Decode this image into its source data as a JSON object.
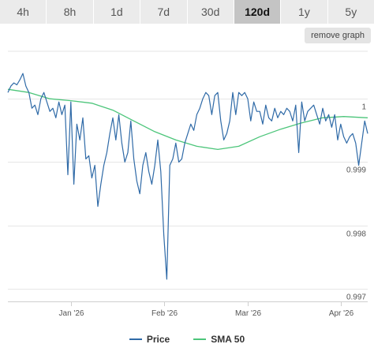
{
  "timeframes": {
    "tabs": [
      "4h",
      "8h",
      "1d",
      "7d",
      "30d",
      "120d",
      "1y",
      "5y"
    ],
    "active": "120d"
  },
  "remove_graph_label": "remove graph",
  "colors": {
    "price": "#2f6aa7",
    "sma": "#4cc57a",
    "grid": "#e6e6e6"
  },
  "chart_data": {
    "type": "line",
    "title": "",
    "xlabel": "",
    "ylabel": "",
    "ylim": [
      0.9968,
      1.00075
    ],
    "yticks": [
      1,
      0.999,
      0.998,
      0.997
    ],
    "ytick_labels": [
      "1",
      "0.999",
      "0.998",
      "0.997"
    ],
    "xlim": [
      "2025-12-11",
      "2026-04-10"
    ],
    "xticks": [
      "2026-01-01",
      "2026-02-01",
      "2026-03-01",
      "2026-04-01"
    ],
    "xtick_labels": [
      "Jan '26",
      "Feb '26",
      "Mar '26",
      "Apr '26"
    ],
    "grid": "horizontal",
    "legend_position": "bottom",
    "series": [
      {
        "name": "Price",
        "x": [
          "2025-12-11",
          "2025-12-12",
          "2025-12-13",
          "2025-12-14",
          "2025-12-15",
          "2025-12-16",
          "2025-12-17",
          "2025-12-18",
          "2025-12-19",
          "2025-12-20",
          "2025-12-21",
          "2025-12-22",
          "2025-12-23",
          "2025-12-24",
          "2025-12-25",
          "2025-12-26",
          "2025-12-27",
          "2025-12-28",
          "2025-12-29",
          "2025-12-30",
          "2025-12-31",
          "2026-01-01",
          "2026-01-02",
          "2026-01-03",
          "2026-01-04",
          "2026-01-05",
          "2026-01-06",
          "2026-01-07",
          "2026-01-08",
          "2026-01-09",
          "2026-01-10",
          "2026-01-11",
          "2026-01-12",
          "2026-01-13",
          "2026-01-14",
          "2026-01-15",
          "2026-01-16",
          "2026-01-17",
          "2026-01-18",
          "2026-01-19",
          "2026-01-20",
          "2026-01-21",
          "2026-01-22",
          "2026-01-23",
          "2026-01-24",
          "2026-01-25",
          "2026-01-26",
          "2026-01-27",
          "2026-01-28",
          "2026-01-29",
          "2026-01-30",
          "2026-01-31",
          "2026-02-01",
          "2026-02-02",
          "2026-02-03",
          "2026-02-04",
          "2026-02-05",
          "2026-02-06",
          "2026-02-07",
          "2026-02-08",
          "2026-02-09",
          "2026-02-10",
          "2026-02-11",
          "2026-02-12",
          "2026-02-13",
          "2026-02-14",
          "2026-02-15",
          "2026-02-16",
          "2026-02-17",
          "2026-02-18",
          "2026-02-19",
          "2026-02-20",
          "2026-02-21",
          "2026-02-22",
          "2026-02-23",
          "2026-02-24",
          "2026-02-25",
          "2026-02-26",
          "2026-02-27",
          "2026-02-28",
          "2026-03-01",
          "2026-03-02",
          "2026-03-03",
          "2026-03-04",
          "2026-03-05",
          "2026-03-06",
          "2026-03-07",
          "2026-03-08",
          "2026-03-09",
          "2026-03-10",
          "2026-03-11",
          "2026-03-12",
          "2026-03-13",
          "2026-03-14",
          "2026-03-15",
          "2026-03-16",
          "2026-03-17",
          "2026-03-18",
          "2026-03-19",
          "2026-03-20",
          "2026-03-21",
          "2026-03-22",
          "2026-03-23",
          "2026-03-24",
          "2026-03-25",
          "2026-03-26",
          "2026-03-27",
          "2026-03-28",
          "2026-03-29",
          "2026-03-30",
          "2026-03-31",
          "2026-04-01",
          "2026-04-02",
          "2026-04-03",
          "2026-04-04",
          "2026-04-05",
          "2026-04-06",
          "2026-04-07",
          "2026-04-08",
          "2026-04-09",
          "2026-04-10"
        ],
        "y": [
          1.0001,
          1.0002,
          1.00025,
          1.00022,
          1.0003,
          1.0004,
          1.0002,
          1.0001,
          0.99985,
          0.9999,
          0.99975,
          1.0,
          1.0001,
          0.99995,
          0.9998,
          0.99985,
          0.9997,
          0.99995,
          0.99975,
          0.9999,
          0.9988,
          0.99995,
          0.99865,
          0.9996,
          0.99935,
          0.9997,
          0.99905,
          0.9991,
          0.99875,
          0.99895,
          0.9983,
          0.99865,
          0.99895,
          0.99915,
          0.99945,
          0.9997,
          0.99935,
          0.99975,
          0.9993,
          0.999,
          0.99915,
          0.99965,
          0.99905,
          0.9987,
          0.9985,
          0.99895,
          0.99915,
          0.99885,
          0.99865,
          0.99895,
          0.99935,
          0.99885,
          0.99785,
          0.99715,
          0.99895,
          0.99905,
          0.9993,
          0.999,
          0.99905,
          0.9993,
          0.99945,
          0.9996,
          0.9995,
          0.99975,
          0.99985,
          1.0,
          1.0001,
          1.00005,
          0.99975,
          1.00005,
          1.0001,
          0.99965,
          0.99935,
          0.99945,
          0.99965,
          1.0001,
          0.99975,
          1.0001,
          1.00005,
          1.0001,
          1.0,
          0.99965,
          0.99995,
          0.9998,
          0.9998,
          0.9996,
          0.9999,
          0.9997,
          0.99965,
          0.99985,
          0.9997,
          0.9998,
          0.99975,
          0.99985,
          0.9998,
          0.99965,
          0.9999,
          0.99915,
          0.99995,
          0.99965,
          0.9998,
          0.99985,
          0.9999,
          0.99975,
          0.9996,
          0.99985,
          0.99965,
          0.99975,
          0.99955,
          0.99975,
          0.99935,
          0.9996,
          0.9994,
          0.9993,
          0.9994,
          0.99945,
          0.9993,
          0.99895,
          0.9993,
          0.99965,
          0.99945
        ]
      },
      {
        "name": "SMA 50",
        "x": [
          "2025-12-11",
          "2025-12-18",
          "2025-12-25",
          "2026-01-01",
          "2026-01-08",
          "2026-01-15",
          "2026-01-22",
          "2026-01-29",
          "2026-02-05",
          "2026-02-12",
          "2026-02-19",
          "2026-02-26",
          "2026-03-05",
          "2026-03-12",
          "2026-03-19",
          "2026-03-26",
          "2026-04-02",
          "2026-04-10"
        ],
        "y": [
          1.00015,
          1.0001,
          1.0,
          0.99997,
          0.99993,
          0.99982,
          0.99965,
          0.99948,
          0.99935,
          0.99925,
          0.9992,
          0.99925,
          0.9994,
          0.99952,
          0.99962,
          0.9997,
          0.99972,
          0.9997
        ]
      }
    ]
  }
}
